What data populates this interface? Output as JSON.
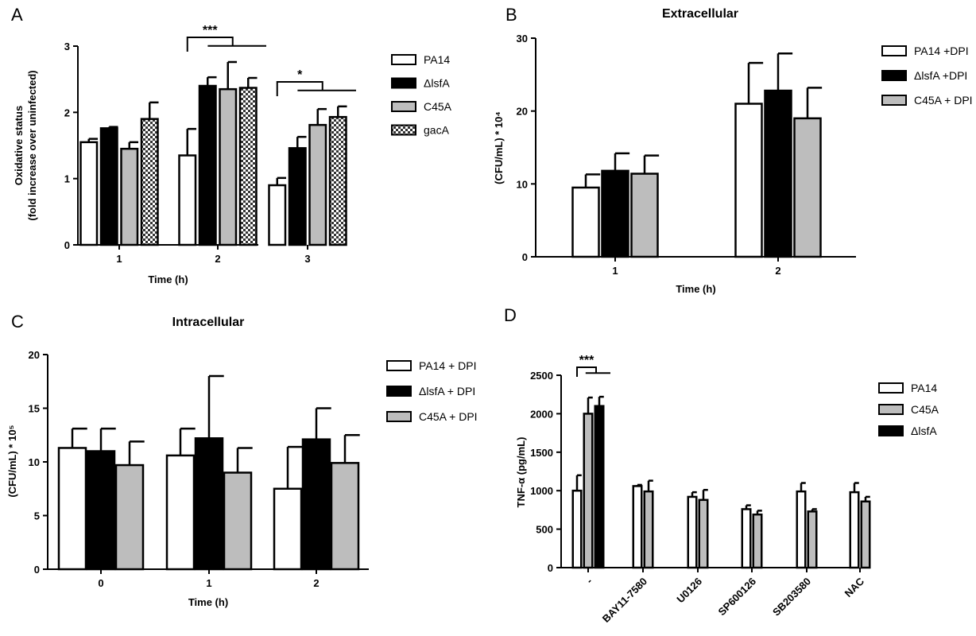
{
  "figure": {
    "panel_letters": [
      "A",
      "B",
      "C",
      "D"
    ]
  },
  "chart_data": [
    {
      "panel": "A",
      "type": "bar",
      "title": "",
      "xlabel": "Time (h)",
      "ylabel": "Oxidative status (fold increase over uninfected)",
      "ylim": [
        0,
        3
      ],
      "yticks": [
        0,
        1,
        2,
        3
      ],
      "categories": [
        "1",
        "2",
        "3"
      ],
      "series": [
        {
          "name": "PA14",
          "fill": "#ffffff",
          "values": [
            1.55,
            1.35,
            0.9
          ],
          "errors": [
            0.05,
            0.4,
            0.11
          ]
        },
        {
          "name": "ΔlsfA",
          "fill": "#000000",
          "values": [
            1.76,
            2.4,
            1.46
          ],
          "errors": [
            0.02,
            0.13,
            0.17
          ]
        },
        {
          "name": "C45A",
          "fill": "#bdbdbd",
          "values": [
            1.45,
            2.35,
            1.81
          ],
          "errors": [
            0.1,
            0.41,
            0.24
          ]
        },
        {
          "name": "gacA",
          "fill": "checker",
          "values": [
            1.9,
            2.37,
            1.93
          ],
          "errors": [
            0.25,
            0.15,
            0.16
          ]
        }
      ],
      "significance": [
        {
          "label": "***",
          "category": "2"
        },
        {
          "label": "*",
          "category": "3"
        }
      ],
      "legend_position": "right"
    },
    {
      "panel": "B",
      "type": "bar",
      "title": "Extracellular",
      "xlabel": "Time (h)",
      "ylabel": "(CFU/mL) * 10⁴",
      "ylim": [
        0,
        30
      ],
      "yticks": [
        0,
        10,
        20,
        30
      ],
      "categories": [
        "1",
        "2"
      ],
      "series": [
        {
          "name": "PA14 +DPI",
          "fill": "#ffffff",
          "values": [
            9.5,
            21
          ],
          "errors": [
            1.8,
            5.6
          ]
        },
        {
          "name": "ΔlsfA +DPI",
          "fill": "#000000",
          "values": [
            11.8,
            22.8
          ],
          "errors": [
            2.4,
            5.1
          ]
        },
        {
          "name": "C45A + DPI",
          "fill": "#bdbdbd",
          "values": [
            11.4,
            19
          ],
          "errors": [
            2.5,
            4.2
          ]
        }
      ],
      "legend_position": "right"
    },
    {
      "panel": "C",
      "type": "bar",
      "title": "Intracellular",
      "xlabel": "Time (h)",
      "ylabel": "(CFU/mL) * 10⁵",
      "ylim": [
        0,
        20
      ],
      "yticks": [
        0,
        5,
        10,
        15,
        20
      ],
      "categories": [
        "0",
        "1",
        "2"
      ],
      "series": [
        {
          "name": "PA14 + DPI",
          "fill": "#ffffff",
          "values": [
            11.3,
            10.6,
            7.5
          ],
          "errors": [
            1.8,
            2.5,
            3.9
          ]
        },
        {
          "name": "ΔlsfA + DPI",
          "fill": "#000000",
          "values": [
            11,
            12.2,
            12.1
          ],
          "errors": [
            2.1,
            5.8,
            2.9
          ]
        },
        {
          "name": "C45A + DPI",
          "fill": "#bdbdbd",
          "values": [
            9.7,
            9,
            9.9
          ],
          "errors": [
            2.2,
            2.3,
            2.6
          ]
        }
      ],
      "legend_position": "right"
    },
    {
      "panel": "D",
      "type": "bar",
      "title": "",
      "xlabel": "",
      "ylabel": "TNF-α (pg/mL)",
      "ylim": [
        0,
        2500
      ],
      "yticks": [
        0,
        500,
        1000,
        1500,
        2000,
        2500
      ],
      "categories": [
        "-",
        "BAY11-7580",
        "U0126",
        "SP600126",
        "SB203580",
        "NAC"
      ],
      "series": [
        {
          "name": "PA14",
          "fill": "#ffffff",
          "values": [
            1000,
            1060,
            920,
            760,
            990,
            980
          ],
          "errors": [
            200,
            15,
            60,
            50,
            110,
            120
          ]
        },
        {
          "name": "C45A",
          "fill": "#bdbdbd",
          "values": [
            2000,
            990,
            880,
            690,
            730,
            860
          ],
          "errors": [
            210,
            140,
            130,
            50,
            30,
            60
          ]
        },
        {
          "name": "ΔlsfA",
          "fill": "#000000",
          "values": [
            2100,
            null,
            null,
            null,
            null,
            null
          ],
          "errors": [
            120,
            null,
            null,
            null,
            null,
            null
          ]
        }
      ],
      "significance": [
        {
          "label": "***",
          "category": "-"
        }
      ],
      "legend_position": "right"
    }
  ]
}
